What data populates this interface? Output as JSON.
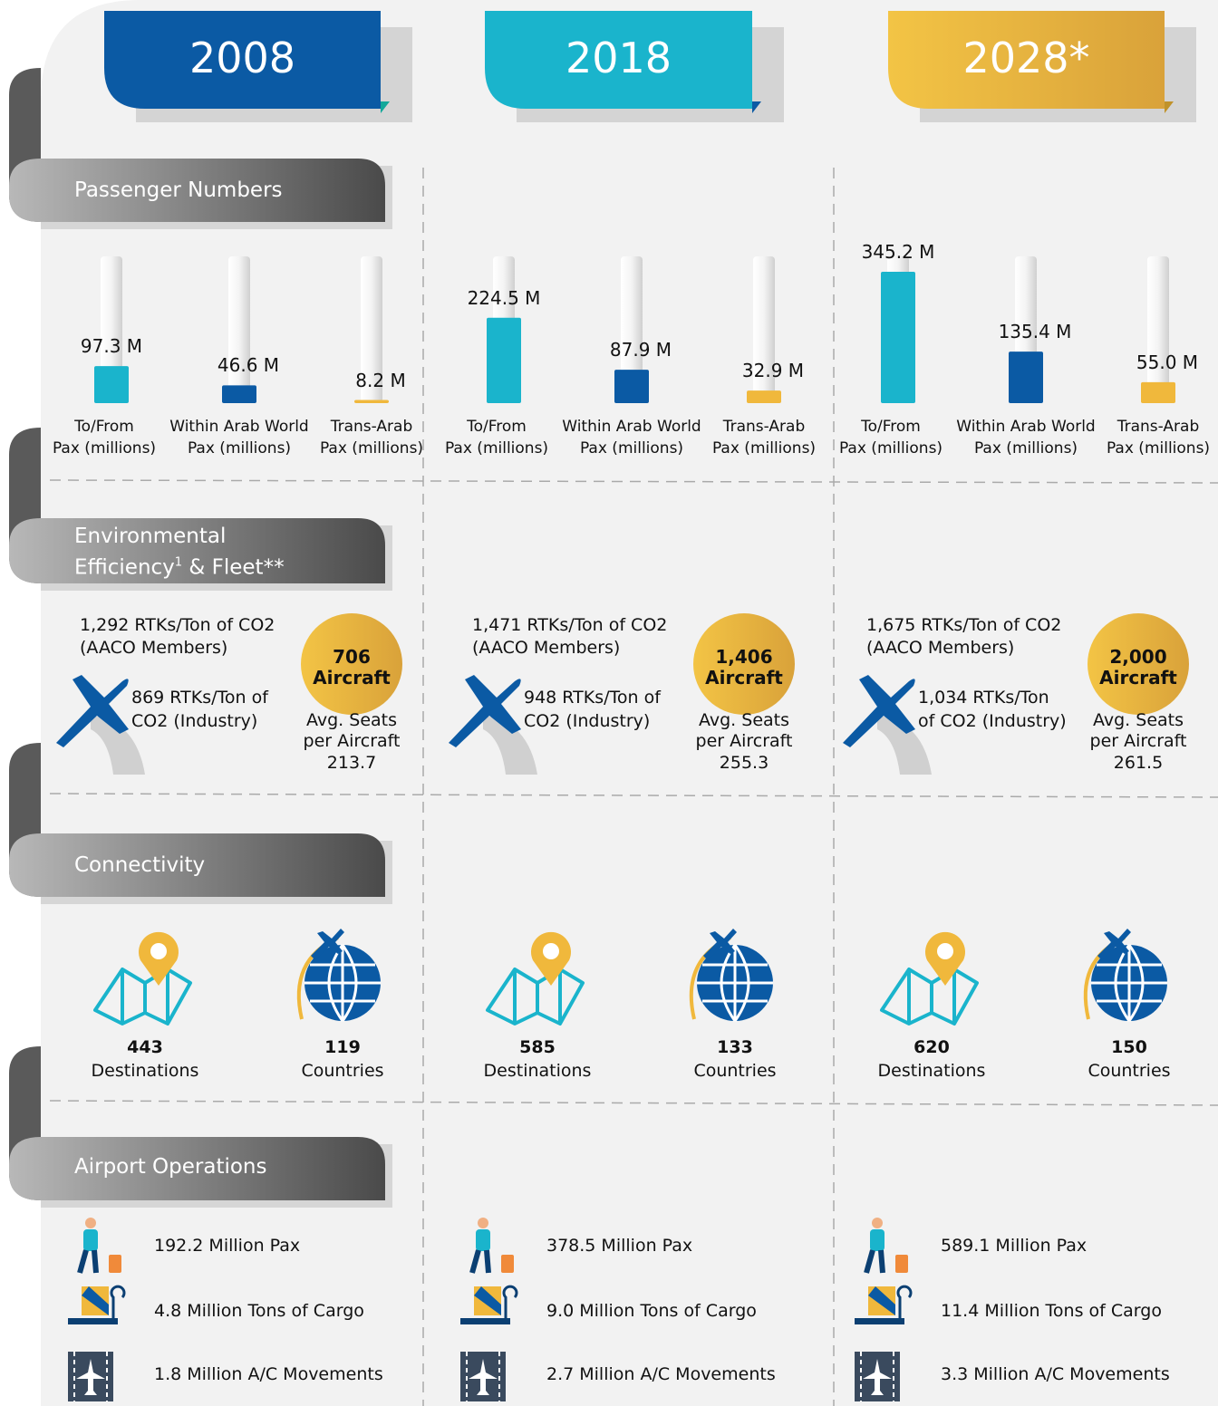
{
  "sections": {
    "passengers": "Passenger Numbers",
    "environment": [
      "Environmental",
      "Efficiency",
      "1",
      "& Fleet**"
    ],
    "connectivity": "Connectivity",
    "airport": "Airport Operations"
  },
  "pax_categories": [
    [
      "To/From",
      "Pax (millions)"
    ],
    [
      "Within Arab World",
      "Pax (millions)"
    ],
    [
      "Trans-Arab",
      "Pax (millions)"
    ]
  ],
  "aircraft_label": "Aircraft",
  "seats_label": [
    "Avg. Seats",
    "per Aircraft"
  ],
  "destinations_label": "Destinations",
  "countries_label": "Countries",
  "columns": [
    {
      "year": "2008",
      "pax": {
        "values": [
          97.3,
          46.6,
          8.2
        ],
        "value_labels": [
          "97.3 M",
          "46.6 M",
          "8.2 M"
        ]
      },
      "aaco": [
        "1,292 RTKs/Ton of CO2",
        "(AACO Members)"
      ],
      "industry": [
        "869 RTKs/Ton of",
        "CO2 (Industry)"
      ],
      "aircraft": "706",
      "seats": "213.7",
      "destinations": "443",
      "countries": "119",
      "airport": [
        "192.2 Million Pax",
        "4.8 Million Tons of Cargo",
        "1.8 Million A/C Movements"
      ]
    },
    {
      "year": "2018",
      "pax": {
        "values": [
          224.5,
          87.9,
          32.9
        ],
        "value_labels": [
          "224.5 M",
          "87.9 M",
          "32.9 M"
        ]
      },
      "aaco": [
        "1,471 RTKs/Ton of CO2",
        "(AACO Members)"
      ],
      "industry": [
        "948 RTKs/Ton of",
        "CO2 (Industry)"
      ],
      "aircraft": "1,406",
      "seats": "255.3",
      "destinations": "585",
      "countries": "133",
      "airport": [
        "378.5 Million Pax",
        "9.0 Million Tons of Cargo",
        "2.7 Million A/C Movements"
      ]
    },
    {
      "year": "2028*",
      "pax": {
        "values": [
          345.2,
          135.4,
          55.0
        ],
        "value_labels": [
          "345.2 M",
          "135.4 M",
          "55.0 M"
        ]
      },
      "aaco": [
        "1,675 RTKs/Ton of CO2",
        "(AACO Members)"
      ],
      "industry": [
        "1,034 RTKs/Ton",
        "of CO2 (Industry)"
      ],
      "aircraft": "2,000",
      "seats": "261.5",
      "destinations": "620",
      "countries": "150",
      "airport": [
        "589.1 Million Pax",
        "11.4 Million Tons of Cargo",
        "3.3 Million A/C Movements"
      ]
    }
  ]
}
